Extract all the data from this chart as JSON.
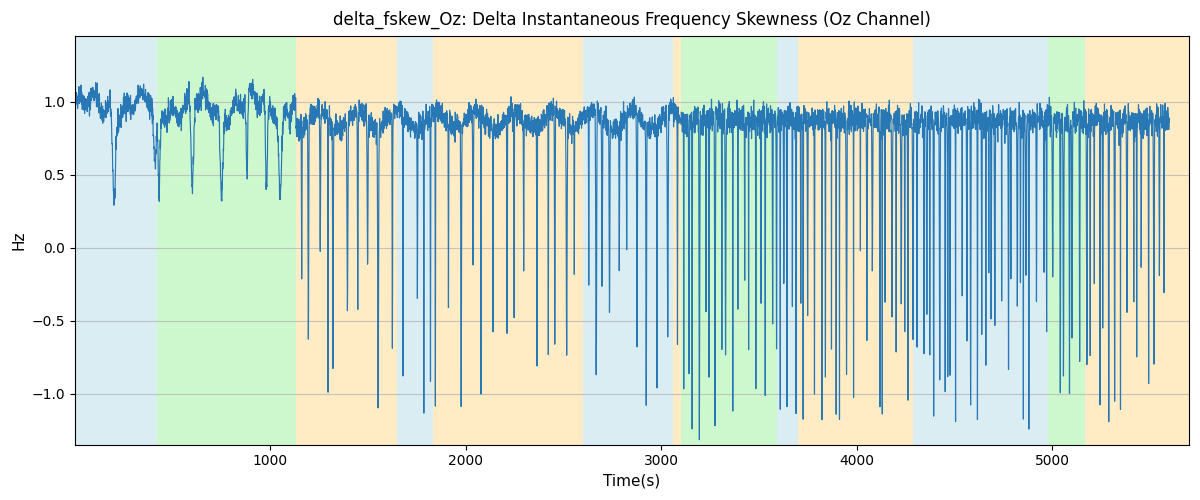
{
  "title": "delta_fskew_Oz: Delta Instantaneous Frequency Skewness (Oz Channel)",
  "xlabel": "Time(s)",
  "ylabel": "Hz",
  "xlim": [
    0,
    5700
  ],
  "ylim": [
    -1.35,
    1.45
  ],
  "line_color": "#2878b5",
  "line_width": 0.85,
  "bg_regions": [
    {
      "xstart": 0,
      "xend": 420,
      "color": "#add8e6",
      "alpha": 0.45
    },
    {
      "xstart": 420,
      "xend": 1130,
      "color": "#90ee90",
      "alpha": 0.45
    },
    {
      "xstart": 1130,
      "xend": 1650,
      "color": "#ffd580",
      "alpha": 0.45
    },
    {
      "xstart": 1650,
      "xend": 1830,
      "color": "#add8e6",
      "alpha": 0.45
    },
    {
      "xstart": 1830,
      "xend": 2600,
      "color": "#ffd580",
      "alpha": 0.45
    },
    {
      "xstart": 2600,
      "xend": 3060,
      "color": "#add8e6",
      "alpha": 0.45
    },
    {
      "xstart": 3060,
      "xend": 3100,
      "color": "#ffd580",
      "alpha": 0.45
    },
    {
      "xstart": 3100,
      "xend": 3590,
      "color": "#90ee90",
      "alpha": 0.45
    },
    {
      "xstart": 3590,
      "xend": 3700,
      "color": "#add8e6",
      "alpha": 0.45
    },
    {
      "xstart": 3700,
      "xend": 4290,
      "color": "#ffd580",
      "alpha": 0.45
    },
    {
      "xstart": 4290,
      "xend": 4980,
      "color": "#add8e6",
      "alpha": 0.45
    },
    {
      "xstart": 4980,
      "xend": 5170,
      "color": "#90ee90",
      "alpha": 0.45
    },
    {
      "xstart": 5170,
      "xend": 5700,
      "color": "#ffd580",
      "alpha": 0.45
    }
  ],
  "grid_color": "#b0b0b0",
  "grid_alpha": 0.7,
  "grid_lw": 0.8,
  "yticks": [
    -1.0,
    -0.5,
    0.0,
    0.5,
    1.0
  ],
  "xticks": [
    1000,
    2000,
    3000,
    4000,
    5000
  ],
  "seed": 42,
  "background_color": "white"
}
